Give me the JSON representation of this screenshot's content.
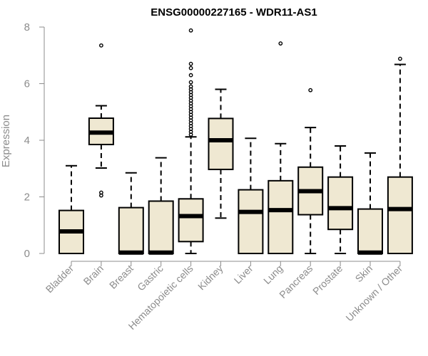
{
  "chart_data": {
    "type": "boxplot",
    "title": "ENSG00000227165 - WDR11-AS1",
    "xlabel": "",
    "ylabel": "Expression",
    "ylim": [
      0,
      8
    ],
    "yticks": [
      0,
      2,
      4,
      6,
      8
    ],
    "colors": {
      "box_fill": "#efe8d2",
      "box_stroke": "#000000",
      "axis": "#8c8c8c"
    },
    "categories": [
      "Bladder",
      "Brain",
      "Breast",
      "Gastric",
      "Hematopoietic cells",
      "Kidney",
      "Liver",
      "Lung",
      "Pancreas",
      "Prostate",
      "Skin",
      "Unknown / Other"
    ],
    "boxes": [
      {
        "name": "Bladder",
        "whisker_low": 0,
        "q1": 0,
        "median": 0.78,
        "q3": 1.52,
        "whisker_high": 3.1,
        "outliers": []
      },
      {
        "name": "Brain",
        "whisker_low": 3.02,
        "q1": 3.85,
        "median": 4.27,
        "q3": 4.78,
        "whisker_high": 5.22,
        "outliers": [
          2.05,
          2.15,
          7.35
        ]
      },
      {
        "name": "Breast",
        "whisker_low": 0,
        "q1": 0,
        "median": 0.03,
        "q3": 1.62,
        "whisker_high": 2.85,
        "outliers": []
      },
      {
        "name": "Gastric",
        "whisker_low": 0,
        "q1": 0,
        "median": 0.03,
        "q3": 1.85,
        "whisker_high": 3.38,
        "outliers": []
      },
      {
        "name": "Hematopoietic cells",
        "whisker_low": 0,
        "q1": 0.42,
        "median": 1.32,
        "q3": 1.93,
        "whisker_high": 4.12,
        "outliers": [
          4.2,
          4.3,
          4.4,
          4.5,
          4.6,
          4.7,
          4.8,
          4.9,
          5.0,
          5.1,
          5.2,
          5.3,
          5.4,
          5.5,
          5.6,
          5.7,
          5.8,
          5.9,
          6.05,
          6.3,
          6.55,
          6.7,
          7.88
        ]
      },
      {
        "name": "Kidney",
        "whisker_low": 1.25,
        "q1": 2.97,
        "median": 4.0,
        "q3": 4.77,
        "whisker_high": 5.8,
        "outliers": []
      },
      {
        "name": "Liver",
        "whisker_low": 0,
        "q1": 0,
        "median": 1.47,
        "q3": 2.25,
        "whisker_high": 4.07,
        "outliers": []
      },
      {
        "name": "Lung",
        "whisker_low": 0,
        "q1": 0,
        "median": 1.53,
        "q3": 2.57,
        "whisker_high": 3.88,
        "outliers": [
          7.42
        ]
      },
      {
        "name": "Pancreas",
        "whisker_low": 0,
        "q1": 1.37,
        "median": 2.2,
        "q3": 3.05,
        "whisker_high": 4.45,
        "outliers": [
          5.77
        ]
      },
      {
        "name": "Prostate",
        "whisker_low": 0,
        "q1": 0.85,
        "median": 1.6,
        "q3": 2.7,
        "whisker_high": 3.8,
        "outliers": []
      },
      {
        "name": "Skin",
        "whisker_low": 0,
        "q1": 0,
        "median": 0.03,
        "q3": 1.57,
        "whisker_high": 3.55,
        "outliers": []
      },
      {
        "name": "Unknown / Other",
        "whisker_low": 0,
        "q1": 0,
        "median": 1.57,
        "q3": 2.7,
        "whisker_high": 6.68,
        "outliers": [
          6.88
        ]
      }
    ]
  }
}
